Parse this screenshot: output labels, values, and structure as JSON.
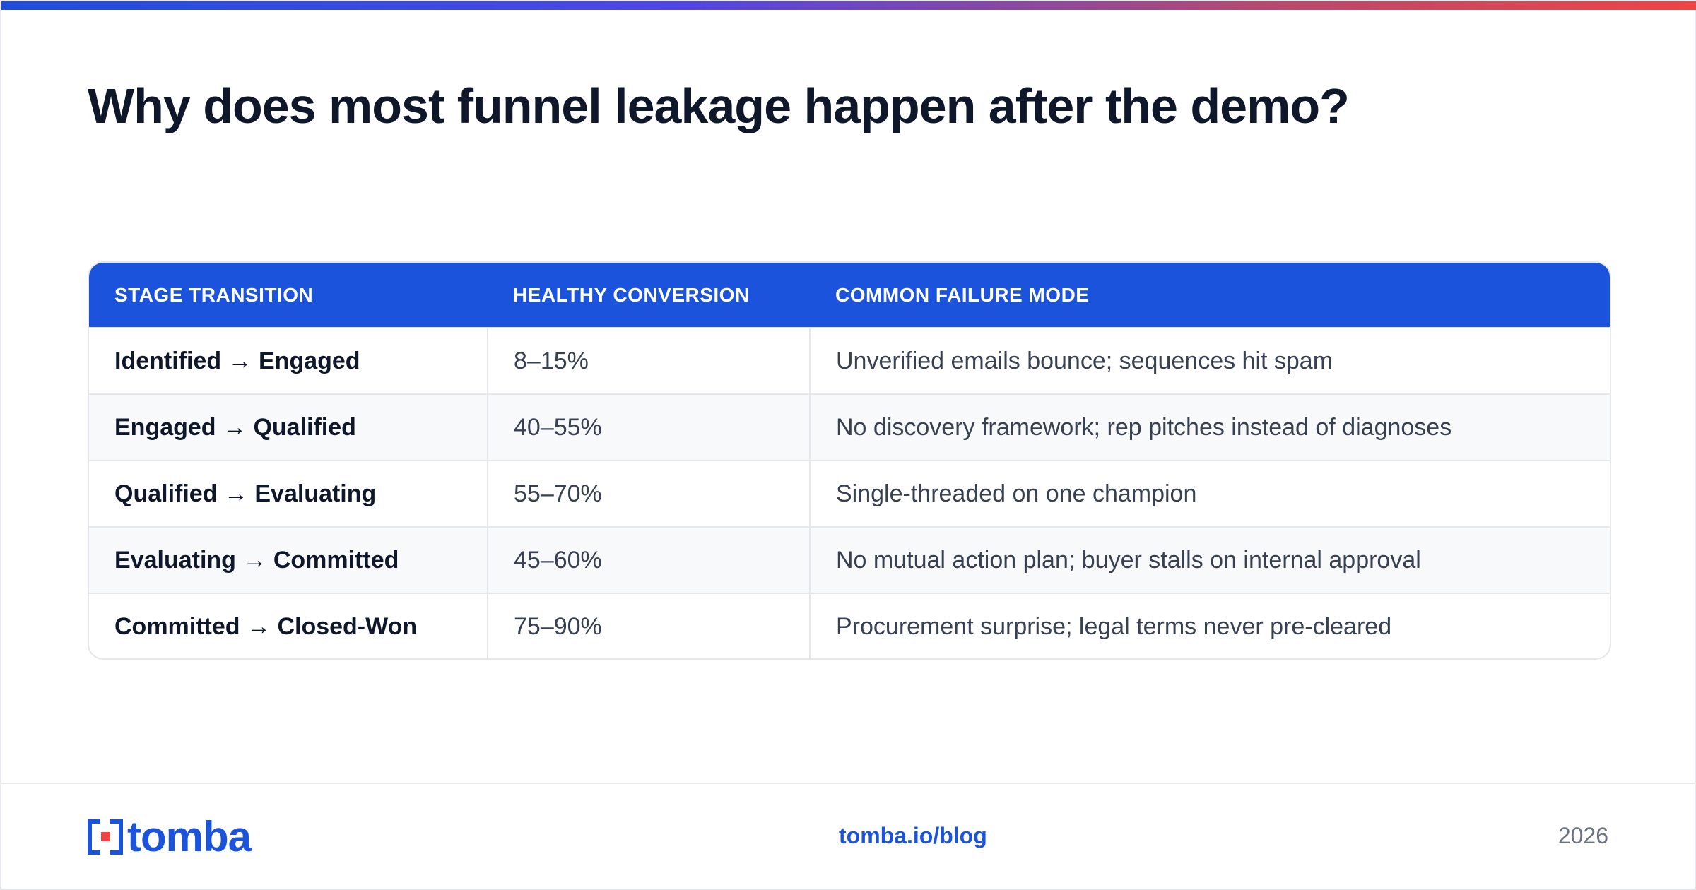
{
  "title": "Why does most funnel leakage happen after the demo?",
  "table": {
    "headers": [
      "STAGE TRANSITION",
      "HEALTHY CONVERSION",
      "COMMON FAILURE MODE"
    ],
    "rows": [
      {
        "stage": "Identified → Engaged",
        "conversion": "8–15%",
        "failure": "Unverified emails bounce; sequences hit spam"
      },
      {
        "stage": "Engaged → Qualified",
        "conversion": "40–55%",
        "failure": "No discovery framework; rep pitches instead of diagnoses"
      },
      {
        "stage": "Qualified → Evaluating",
        "conversion": "55–70%",
        "failure": "Single-threaded on one champion"
      },
      {
        "stage": "Evaluating → Committed",
        "conversion": "45–60%",
        "failure": "No mutual action plan; buyer stalls on internal approval"
      },
      {
        "stage": "Committed → Closed-Won",
        "conversion": "75–90%",
        "failure": "Procurement surprise; legal terms never pre-cleared"
      }
    ]
  },
  "footer": {
    "logo_text": "tomba",
    "link": "tomba.io/blog",
    "year": "2026"
  },
  "colors": {
    "brand_blue": "#1b53dd",
    "accent_red": "#ef4444",
    "title": "#0f172a"
  }
}
